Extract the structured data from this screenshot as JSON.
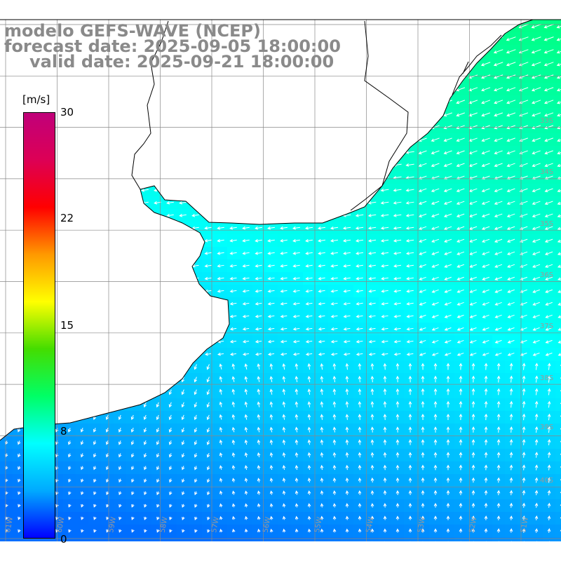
{
  "title": {
    "model": "modelo GEFS-WAVE (NCEP)",
    "forecast": "forecast date: 2025-09-05 18:00:00",
    "valid": "valid date: 2025-09-21 18:00:00"
  },
  "colorbar": {
    "unit": "[m/s]",
    "ticks": [
      "30",
      "22",
      "15",
      "8",
      "0"
    ],
    "stops": [
      "#0000ff",
      "#00aaff",
      "#00ffff",
      "#00ff66",
      "#44dd00",
      "#ffff00",
      "#ff9900",
      "#ff0000",
      "#dd0055",
      "#c0007a"
    ]
  },
  "grid": {
    "lat_labels": [
      "33S",
      "34S",
      "35S",
      "36S",
      "37S",
      "38S",
      "39S",
      "40S"
    ],
    "lon_labels": [
      "61W",
      "60W",
      "59W",
      "58W",
      "57W",
      "56W",
      "55W",
      "54W",
      "53W",
      "52W",
      "51W"
    ]
  },
  "colors": {
    "land": "#ffffff",
    "grid": "#888888",
    "coast": "#000000",
    "arrow": "#ffffff",
    "label": "#999999"
  }
}
